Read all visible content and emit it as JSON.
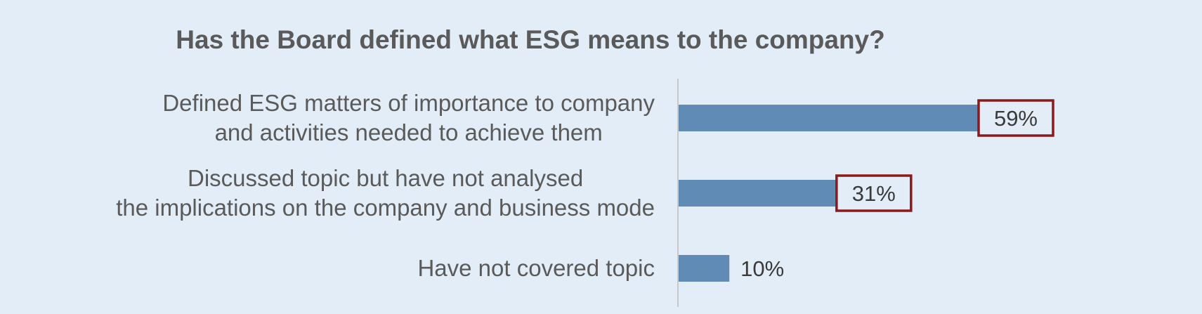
{
  "chart_data": {
    "type": "bar",
    "orientation": "horizontal",
    "title": "Has the Board defined what ESG means to the company?",
    "categories": [
      [
        "Defined ESG matters of importance to company",
        "and activities needed to achieve them"
      ],
      [
        "Discussed topic but have not analysed",
        "the implications on the company and business mode"
      ],
      [
        "Have not covered topic"
      ]
    ],
    "values": [
      59,
      31,
      10
    ],
    "data_labels": [
      "59%",
      "31%",
      "10%"
    ],
    "highlighted": [
      true,
      true,
      false
    ],
    "xlim": [
      0,
      100
    ],
    "grid": false,
    "legend": "none",
    "colors": {
      "bar": "#5f8bb4",
      "highlight_border": "#8b1a1a",
      "axis": "#c8c8c8",
      "background": "#e3edf7"
    }
  }
}
